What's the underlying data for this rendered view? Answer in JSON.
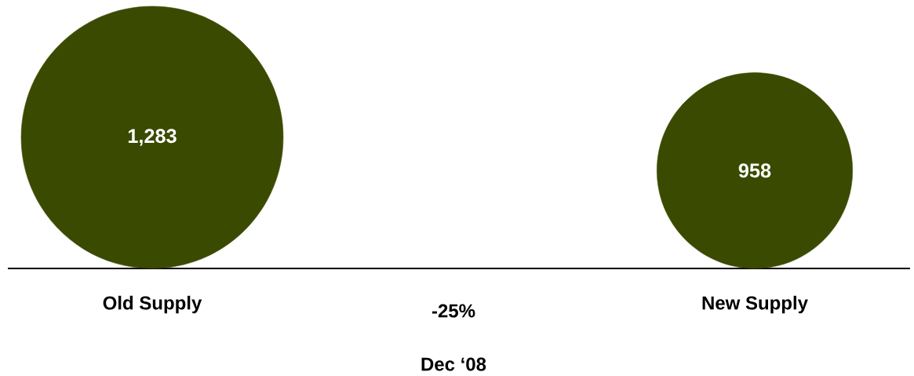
{
  "chart_data": {
    "type": "other",
    "categories": [
      "Old Supply",
      "New Supply"
    ],
    "values": [
      1283,
      958
    ],
    "value_labels": [
      "1,283",
      "958"
    ],
    "color": "#3a4a00",
    "annotations": [
      "-25%",
      "Dec ‘08"
    ]
  }
}
